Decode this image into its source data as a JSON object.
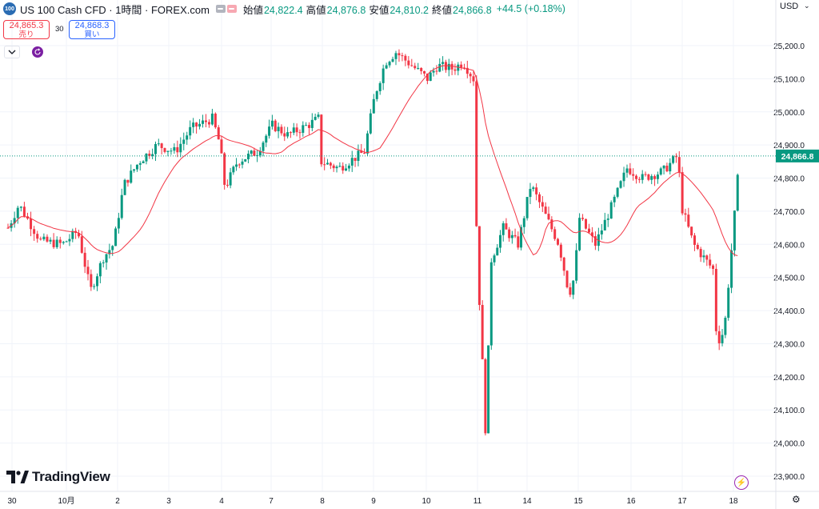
{
  "header": {
    "symbol_logo": "100",
    "title": "US 100 Cash CFD · 1時間 · FOREX.com",
    "open_label": "始値",
    "open_value": "24,822.4",
    "high_label": "高値",
    "high_value": "24,876.8",
    "low_label": "安値",
    "low_value": "24,810.2",
    "close_label": "終値",
    "close_value": "24,866.8",
    "change": "+44.5 (+0.18%)"
  },
  "trade": {
    "sell_price": "24,865.3",
    "sell_label": "売り",
    "spread": "30",
    "buy_price": "24,868.3",
    "buy_label": "買い"
  },
  "currency": "USD",
  "brand": "TradingView",
  "current_price_label": "24,866.8",
  "colors": {
    "up": "#089981",
    "down": "#f23645",
    "ma": "#f23645",
    "grid": "#f0f3fa",
    "current_line": "#089981"
  },
  "chart_data": {
    "type": "candlestick",
    "title": "US 100 Cash CFD · 1時間 · FOREX.com",
    "y_ticks": [
      25200,
      25100,
      25000,
      24900,
      24800,
      24700,
      24600,
      24500,
      24400,
      24300,
      24200,
      24100,
      24000,
      23900
    ],
    "ylim": [
      23860,
      25280
    ],
    "x_tick_labels": [
      "30",
      "10月",
      "2",
      "3",
      "4",
      "7",
      "8",
      "9",
      "10",
      "11",
      "14",
      "15",
      "16",
      "17",
      "18"
    ],
    "current_price": 24866.8,
    "ma_label": "",
    "approx_close_path": [
      [
        0,
        24650
      ],
      [
        0.2,
        24720
      ],
      [
        0.6,
        24610
      ],
      [
        1.0,
        24600
      ],
      [
        1.3,
        24640
      ],
      [
        1.55,
        24460
      ],
      [
        1.8,
        24560
      ],
      [
        2.0,
        24600
      ],
      [
        2.2,
        24780
      ],
      [
        2.5,
        24850
      ],
      [
        2.85,
        24900
      ],
      [
        3.2,
        24880
      ],
      [
        3.5,
        24950
      ],
      [
        3.9,
        24980
      ],
      [
        4.05,
        24900
      ],
      [
        4.15,
        24770
      ],
      [
        4.4,
        24850
      ],
      [
        4.8,
        24880
      ],
      [
        5.1,
        24960
      ],
      [
        5.4,
        24930
      ],
      [
        5.8,
        24960
      ],
      [
        6.0,
        24980
      ],
      [
        6.05,
        24850
      ],
      [
        6.4,
        24830
      ],
      [
        6.9,
        24880
      ],
      [
        7.1,
        25050
      ],
      [
        7.3,
        25150
      ],
      [
        7.5,
        25180
      ],
      [
        7.8,
        25140
      ],
      [
        8.1,
        25100
      ],
      [
        8.3,
        25140
      ],
      [
        8.6,
        25130
      ],
      [
        8.8,
        25150
      ],
      [
        9.0,
        25100
      ],
      [
        9.05,
        24700
      ],
      [
        9.1,
        24490
      ],
      [
        9.2,
        24180
      ],
      [
        9.25,
        24010
      ],
      [
        9.35,
        24550
      ],
      [
        9.6,
        24650
      ],
      [
        9.9,
        24600
      ],
      [
        10.15,
        24780
      ],
      [
        10.4,
        24700
      ],
      [
        10.7,
        24600
      ],
      [
        10.9,
        24450
      ],
      [
        11.0,
        24500
      ],
      [
        11.1,
        24680
      ],
      [
        11.4,
        24600
      ],
      [
        11.8,
        24750
      ],
      [
        12.0,
        24830
      ],
      [
        12.3,
        24800
      ],
      [
        12.7,
        24820
      ],
      [
        13.0,
        24870
      ],
      [
        13.05,
        24720
      ],
      [
        13.3,
        24600
      ],
      [
        13.7,
        24520
      ],
      [
        13.75,
        24300
      ],
      [
        13.9,
        24340
      ],
      [
        14.05,
        24600
      ],
      [
        14.2,
        24866.8
      ]
    ]
  }
}
